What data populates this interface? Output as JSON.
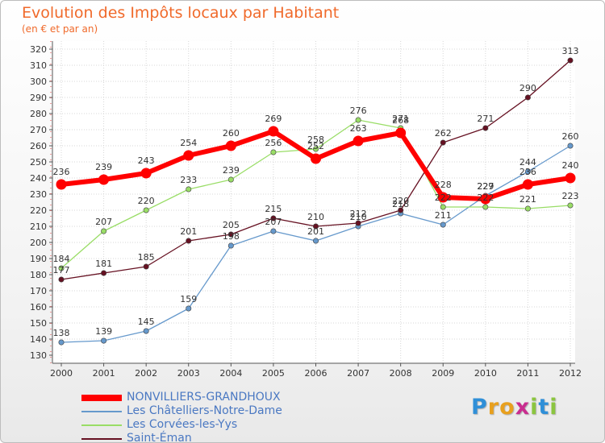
{
  "header": {
    "title": "Evolution des Impôts locaux par Habitant",
    "subtitle": "(en € et par an)"
  },
  "logo": {
    "letters": [
      "P",
      "r",
      "o",
      "x",
      "i",
      "t",
      "i"
    ],
    "colors": [
      "#2f8fd8",
      "#e8a01e",
      "#e8a01e",
      "#c92d8f",
      "#8bc53f",
      "#2f8fd8",
      "#8bc53f"
    ]
  },
  "chart_data": {
    "type": "line",
    "title": "Evolution des Impôts locaux par Habitant",
    "subtitle": "(en € et par an)",
    "xlabel": "",
    "ylabel": "",
    "ylim": [
      130,
      320
    ],
    "ytick_step": 10,
    "grid": true,
    "legend_position": "bottom-left",
    "categories": [
      "2000",
      "2001",
      "2002",
      "2003",
      "2004",
      "2005",
      "2006",
      "2007",
      "2008",
      "2009",
      "2010",
      "2011",
      "2012"
    ],
    "series": [
      {
        "name": "NONVILLIERS-GRANDHOUX",
        "color": "#ff0000",
        "emphasis": true,
        "values": [
          236,
          239,
          243,
          254,
          260,
          269,
          252,
          263,
          268,
          228,
          227,
          236,
          240
        ]
      },
      {
        "name": "Les Châtelliers-Notre-Dame",
        "color": "#6699cc",
        "emphasis": false,
        "values": [
          138,
          139,
          145,
          159,
          198,
          207,
          201,
          210,
          218,
          211,
          229,
          244,
          260
        ]
      },
      {
        "name": "Les Corvées-les-Yys",
        "color": "#99dd66",
        "emphasis": false,
        "values": [
          184,
          207,
          220,
          233,
          239,
          256,
          258,
          276,
          271,
          222,
          222,
          221,
          223
        ]
      },
      {
        "name": "Saint-Éman",
        "color": "#661122",
        "emphasis": false,
        "values": [
          177,
          181,
          185,
          201,
          205,
          215,
          210,
          212,
          220,
          262,
          271,
          290,
          313
        ]
      }
    ]
  }
}
